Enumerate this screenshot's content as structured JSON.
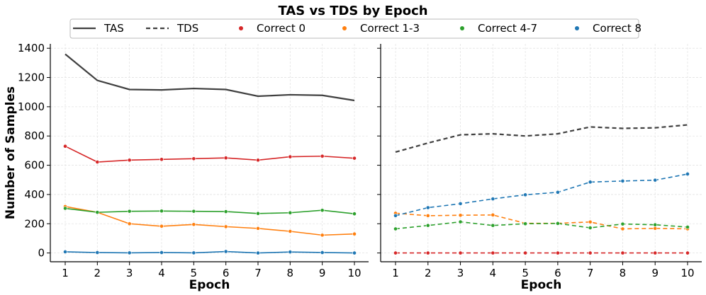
{
  "chart_data": {
    "type": "line",
    "title": "TAS vs TDS by Epoch",
    "ylabel": "Number of Samples",
    "xlabel": "Epoch",
    "x": [
      1,
      2,
      3,
      4,
      5,
      6,
      7,
      8,
      9,
      10
    ],
    "ylim": [
      -60,
      1430
    ],
    "yticks": [
      0,
      200,
      400,
      600,
      800,
      1000,
      1200,
      1400
    ],
    "grid": true,
    "legend_position": "top-center",
    "legend": [
      {
        "label": "TAS",
        "style": "solid",
        "color": "#404040"
      },
      {
        "label": "TDS",
        "style": "dashed",
        "color": "#404040"
      },
      {
        "label": "Correct 0",
        "style": "marker",
        "color": "#d62728"
      },
      {
        "label": "Correct 1-3",
        "style": "marker",
        "color": "#ff7f0e"
      },
      {
        "label": "Correct 4-7",
        "style": "marker",
        "color": "#2ca02c"
      },
      {
        "label": "Correct 8",
        "style": "marker",
        "color": "#1f77b4"
      }
    ],
    "panels": [
      {
        "label": "TAS",
        "style": "solid",
        "series": [
          {
            "name": "TAS",
            "color": "#404040",
            "markers": false,
            "values": [
              1360,
              1180,
              1118,
              1115,
              1125,
              1118,
              1072,
              1082,
              1078,
              1043
            ]
          },
          {
            "name": "Correct 0",
            "color": "#d62728",
            "markers": true,
            "values": [
              730,
              622,
              635,
              640,
              645,
              650,
              635,
              658,
              662,
              648
            ]
          },
          {
            "name": "Correct 1-3",
            "color": "#ff7f0e",
            "markers": true,
            "values": [
              318,
              278,
              200,
              183,
              195,
              180,
              168,
              148,
              122,
              130
            ]
          },
          {
            "name": "Correct 4-7",
            "color": "#2ca02c",
            "markers": true,
            "values": [
              305,
              278,
              285,
              287,
              285,
              283,
              270,
              275,
              292,
              268
            ]
          },
          {
            "name": "Correct 8",
            "color": "#1f77b4",
            "markers": true,
            "values": [
              8,
              3,
              1,
              3,
              1,
              10,
              0,
              7,
              3,
              0
            ]
          }
        ]
      },
      {
        "label": "TDS",
        "style": "dashed",
        "series": [
          {
            "name": "TDS",
            "color": "#404040",
            "markers": false,
            "values": [
              690,
              752,
              808,
              815,
              800,
              815,
              862,
              852,
              856,
              876
            ]
          },
          {
            "name": "Correct 0",
            "color": "#d62728",
            "markers": true,
            "values": [
              0,
              0,
              0,
              0,
              0,
              0,
              0,
              0,
              0,
              0
            ]
          },
          {
            "name": "Correct 1-3",
            "color": "#ff7f0e",
            "markers": true,
            "values": [
              272,
              255,
              258,
              260,
              203,
              203,
              212,
              165,
              168,
              165
            ]
          },
          {
            "name": "Correct 4-7",
            "color": "#2ca02c",
            "markers": true,
            "values": [
              165,
              188,
              213,
              188,
              200,
              202,
              172,
              198,
              193,
              177
            ]
          },
          {
            "name": "Correct 8",
            "color": "#1f77b4",
            "markers": true,
            "values": [
              255,
              310,
              337,
              370,
              398,
              415,
              485,
              492,
              498,
              540
            ]
          }
        ]
      }
    ]
  }
}
